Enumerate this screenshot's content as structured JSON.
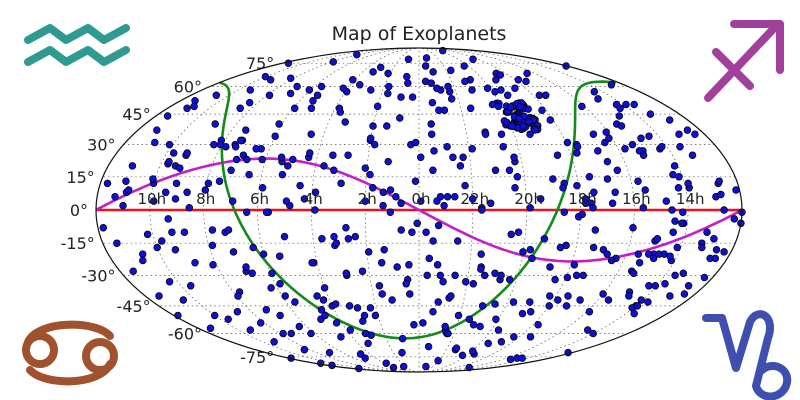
{
  "chart_data": {
    "type": "scatter",
    "title": "Map of Exoplanets",
    "projection": "mollweide",
    "lat_labels": [
      "75°",
      "60°",
      "45°",
      "30°",
      "15°",
      "0°",
      "-15°",
      "-30°",
      "-45°",
      "-60°",
      "-75°"
    ],
    "lat_values": [
      75,
      60,
      45,
      30,
      15,
      0,
      -15,
      -30,
      -45,
      -60,
      -75
    ],
    "lon_labels": [
      "14h",
      "16h",
      "18h",
      "20h",
      "22h",
      "0h",
      "2h",
      "4h",
      "6h",
      "8h",
      "10h"
    ],
    "lon_values_deg": [
      -150,
      -120,
      -90,
      -60,
      -30,
      0,
      30,
      60,
      90,
      120,
      150
    ],
    "grid": true,
    "reference_curves": [
      {
        "kind": "equator",
        "color": "#e8121e"
      },
      {
        "kind": "ecliptic",
        "color": "#c21fc9",
        "inclination_deg": 23.4
      },
      {
        "kind": "galactic plane",
        "color": "#128a1c"
      }
    ],
    "corner_icons": [
      {
        "name": "aquarius-icon",
        "color": "#2e9a92",
        "position": "top-left"
      },
      {
        "name": "sagittarius-icon",
        "color": "#a23f9a",
        "position": "top-right"
      },
      {
        "name": "cancer-icon",
        "color": "#a0512e",
        "position": "bottom-left"
      },
      {
        "name": "capricorn-icon",
        "color": "#3f4fb0",
        "position": "bottom-right"
      }
    ],
    "marker_color": "#1010d0",
    "approx_points": [
      [
        80,
        52
      ],
      [
        62,
        64
      ],
      [
        55,
        46
      ],
      [
        40,
        58
      ],
      [
        30,
        49
      ],
      [
        92,
        40
      ],
      [
        105,
        60
      ],
      [
        118,
        55
      ],
      [
        128,
        48
      ],
      [
        140,
        58
      ],
      [
        160,
        55
      ],
      [
        172,
        44
      ],
      [
        -10,
        51
      ],
      [
        -18,
        58
      ],
      [
        -6,
        63
      ],
      [
        -25,
        60
      ],
      [
        -48,
        64
      ],
      [
        -62,
        57
      ],
      [
        -70,
        46
      ],
      [
        -52,
        35
      ],
      [
        -88,
        42
      ],
      [
        -100,
        55
      ],
      [
        -118,
        49
      ],
      [
        -130,
        40
      ],
      [
        -145,
        50
      ],
      [
        -160,
        45
      ],
      [
        -172,
        37
      ],
      [
        -162,
        25
      ],
      [
        -148,
        20
      ],
      [
        -138,
        33
      ],
      [
        -124,
        28
      ],
      [
        -110,
        22
      ],
      [
        -96,
        30
      ],
      [
        -82,
        25
      ],
      [
        -70,
        35
      ],
      [
        -56,
        22
      ],
      [
        -44,
        18
      ],
      [
        -32,
        28
      ],
      [
        -20,
        24
      ],
      [
        -8,
        35
      ],
      [
        5,
        30
      ],
      [
        18,
        22
      ],
      [
        30,
        32
      ],
      [
        42,
        25
      ],
      [
        55,
        20
      ],
      [
        68,
        35
      ],
      [
        80,
        22
      ],
      [
        95,
        28
      ],
      [
        108,
        18
      ],
      [
        122,
        32
      ],
      [
        138,
        25
      ],
      [
        152,
        30
      ],
      [
        166,
        20
      ],
      [
        176,
        12
      ],
      [
        164,
        8
      ],
      [
        150,
        12
      ],
      [
        136,
        5
      ],
      [
        120,
        9
      ],
      [
        104,
        4
      ],
      [
        88,
        10
      ],
      [
        72,
        2
      ],
      [
        58,
        8
      ],
      [
        44,
        12
      ],
      [
        30,
        4
      ],
      [
        16,
        9
      ],
      [
        2,
        13
      ],
      [
        -12,
        6
      ],
      [
        -26,
        11
      ],
      [
        -40,
        3
      ],
      [
        -54,
        10
      ],
      [
        -68,
        5
      ],
      [
        -82,
        12
      ],
      [
        -96,
        3
      ],
      [
        -110,
        8
      ],
      [
        -124,
        13
      ],
      [
        -138,
        4
      ],
      [
        -152,
        10
      ],
      [
        -166,
        6
      ],
      [
        -176,
        -4
      ],
      [
        -162,
        -10
      ],
      [
        -148,
        -6
      ],
      [
        -134,
        -14
      ],
      [
        -120,
        -8
      ],
      [
        -106,
        -18
      ],
      [
        -92,
        -25
      ],
      [
        -84,
        -32
      ],
      [
        -86,
        -40
      ],
      [
        -100,
        -30
      ],
      [
        -115,
        -22
      ],
      [
        -128,
        -28
      ],
      [
        -142,
        -20
      ],
      [
        -156,
        -30
      ],
      [
        -170,
        -22
      ],
      [
        -165,
        -40
      ],
      [
        -150,
        -45
      ],
      [
        -136,
        -38
      ],
      [
        -122,
        -48
      ],
      [
        -108,
        -42
      ],
      [
        -94,
        -55
      ],
      [
        -80,
        -48
      ],
      [
        -66,
        -58
      ],
      [
        -52,
        -44
      ],
      [
        -38,
        -52
      ],
      [
        -24,
        -60
      ],
      [
        -10,
        -48
      ],
      [
        4,
        -55
      ],
      [
        18,
        -42
      ],
      [
        32,
        -50
      ],
      [
        46,
        -60
      ],
      [
        60,
        -45
      ],
      [
        74,
        -52
      ],
      [
        88,
        -40
      ],
      [
        102,
        -50
      ],
      [
        116,
        -38
      ],
      [
        130,
        -48
      ],
      [
        144,
        -35
      ],
      [
        158,
        -42
      ],
      [
        172,
        -28
      ],
      [
        160,
        -20
      ],
      [
        146,
        -14
      ],
      [
        132,
        -24
      ],
      [
        118,
        -16
      ],
      [
        104,
        -28
      ],
      [
        90,
        -20
      ],
      [
        76,
        -12
      ],
      [
        62,
        -24
      ],
      [
        48,
        -16
      ],
      [
        34,
        -28
      ],
      [
        20,
        -18
      ],
      [
        6,
        -25
      ],
      [
        -8,
        -14
      ],
      [
        -22,
        -30
      ],
      [
        -36,
        -20
      ],
      [
        -50,
        -32
      ],
      [
        -64,
        -18
      ],
      [
        -78,
        -26
      ],
      [
        -68,
        -66
      ],
      [
        -40,
        -70
      ],
      [
        -10,
        -68
      ],
      [
        20,
        -72
      ],
      [
        50,
        -66
      ],
      [
        -100,
        -62
      ],
      [
        70,
        -62
      ],
      [
        110,
        -60
      ],
      [
        -140,
        -58
      ],
      [
        140,
        -58
      ],
      [
        12,
        66
      ],
      [
        -35,
        70
      ],
      [
        45,
        72
      ],
      [
        -80,
        68
      ]
    ]
  }
}
